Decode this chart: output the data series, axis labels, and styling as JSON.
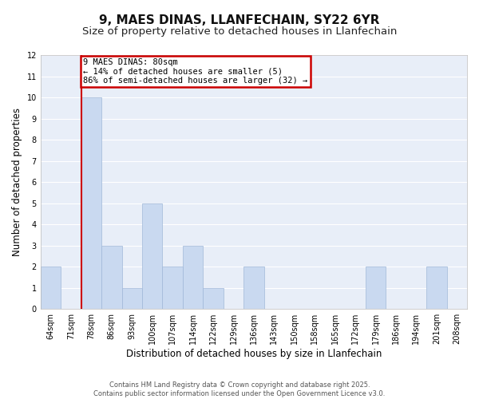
{
  "title": "9, MAES DINAS, LLANFECHAIN, SY22 6YR",
  "subtitle": "Size of property relative to detached houses in Llanfechain",
  "xlabel": "Distribution of detached houses by size in Llanfechain",
  "ylabel": "Number of detached properties",
  "bins": [
    "64sqm",
    "71sqm",
    "78sqm",
    "86sqm",
    "93sqm",
    "100sqm",
    "107sqm",
    "114sqm",
    "122sqm",
    "129sqm",
    "136sqm",
    "143sqm",
    "150sqm",
    "158sqm",
    "165sqm",
    "172sqm",
    "179sqm",
    "186sqm",
    "194sqm",
    "201sqm",
    "208sqm"
  ],
  "values": [
    2,
    0,
    10,
    3,
    1,
    5,
    2,
    3,
    1,
    0,
    2,
    0,
    0,
    0,
    0,
    0,
    2,
    0,
    0,
    2,
    0
  ],
  "bar_color": "#c9d9f0",
  "bar_edge_color": "#a0b8d8",
  "marker_line_bin_index": 2,
  "marker_label": "9 MAES DINAS: 80sqm",
  "annotation_line1": "← 14% of detached houses are smaller (5)",
  "annotation_line2": "86% of semi-detached houses are larger (32) →",
  "annotation_box_color": "#ffffff",
  "annotation_box_edge_color": "#cc0000",
  "marker_line_color": "#cc0000",
  "ylim": [
    0,
    12
  ],
  "yticks": [
    0,
    1,
    2,
    3,
    4,
    5,
    6,
    7,
    8,
    9,
    10,
    11,
    12
  ],
  "bg_color": "#e8eef8",
  "grid_color": "#ffffff",
  "footer1": "Contains HM Land Registry data © Crown copyright and database right 2025.",
  "footer2": "Contains public sector information licensed under the Open Government Licence v3.0.",
  "title_fontsize": 11,
  "subtitle_fontsize": 9.5,
  "axis_label_fontsize": 8.5,
  "tick_fontsize": 7,
  "footer_fontsize": 6,
  "annotation_fontsize": 7.5
}
